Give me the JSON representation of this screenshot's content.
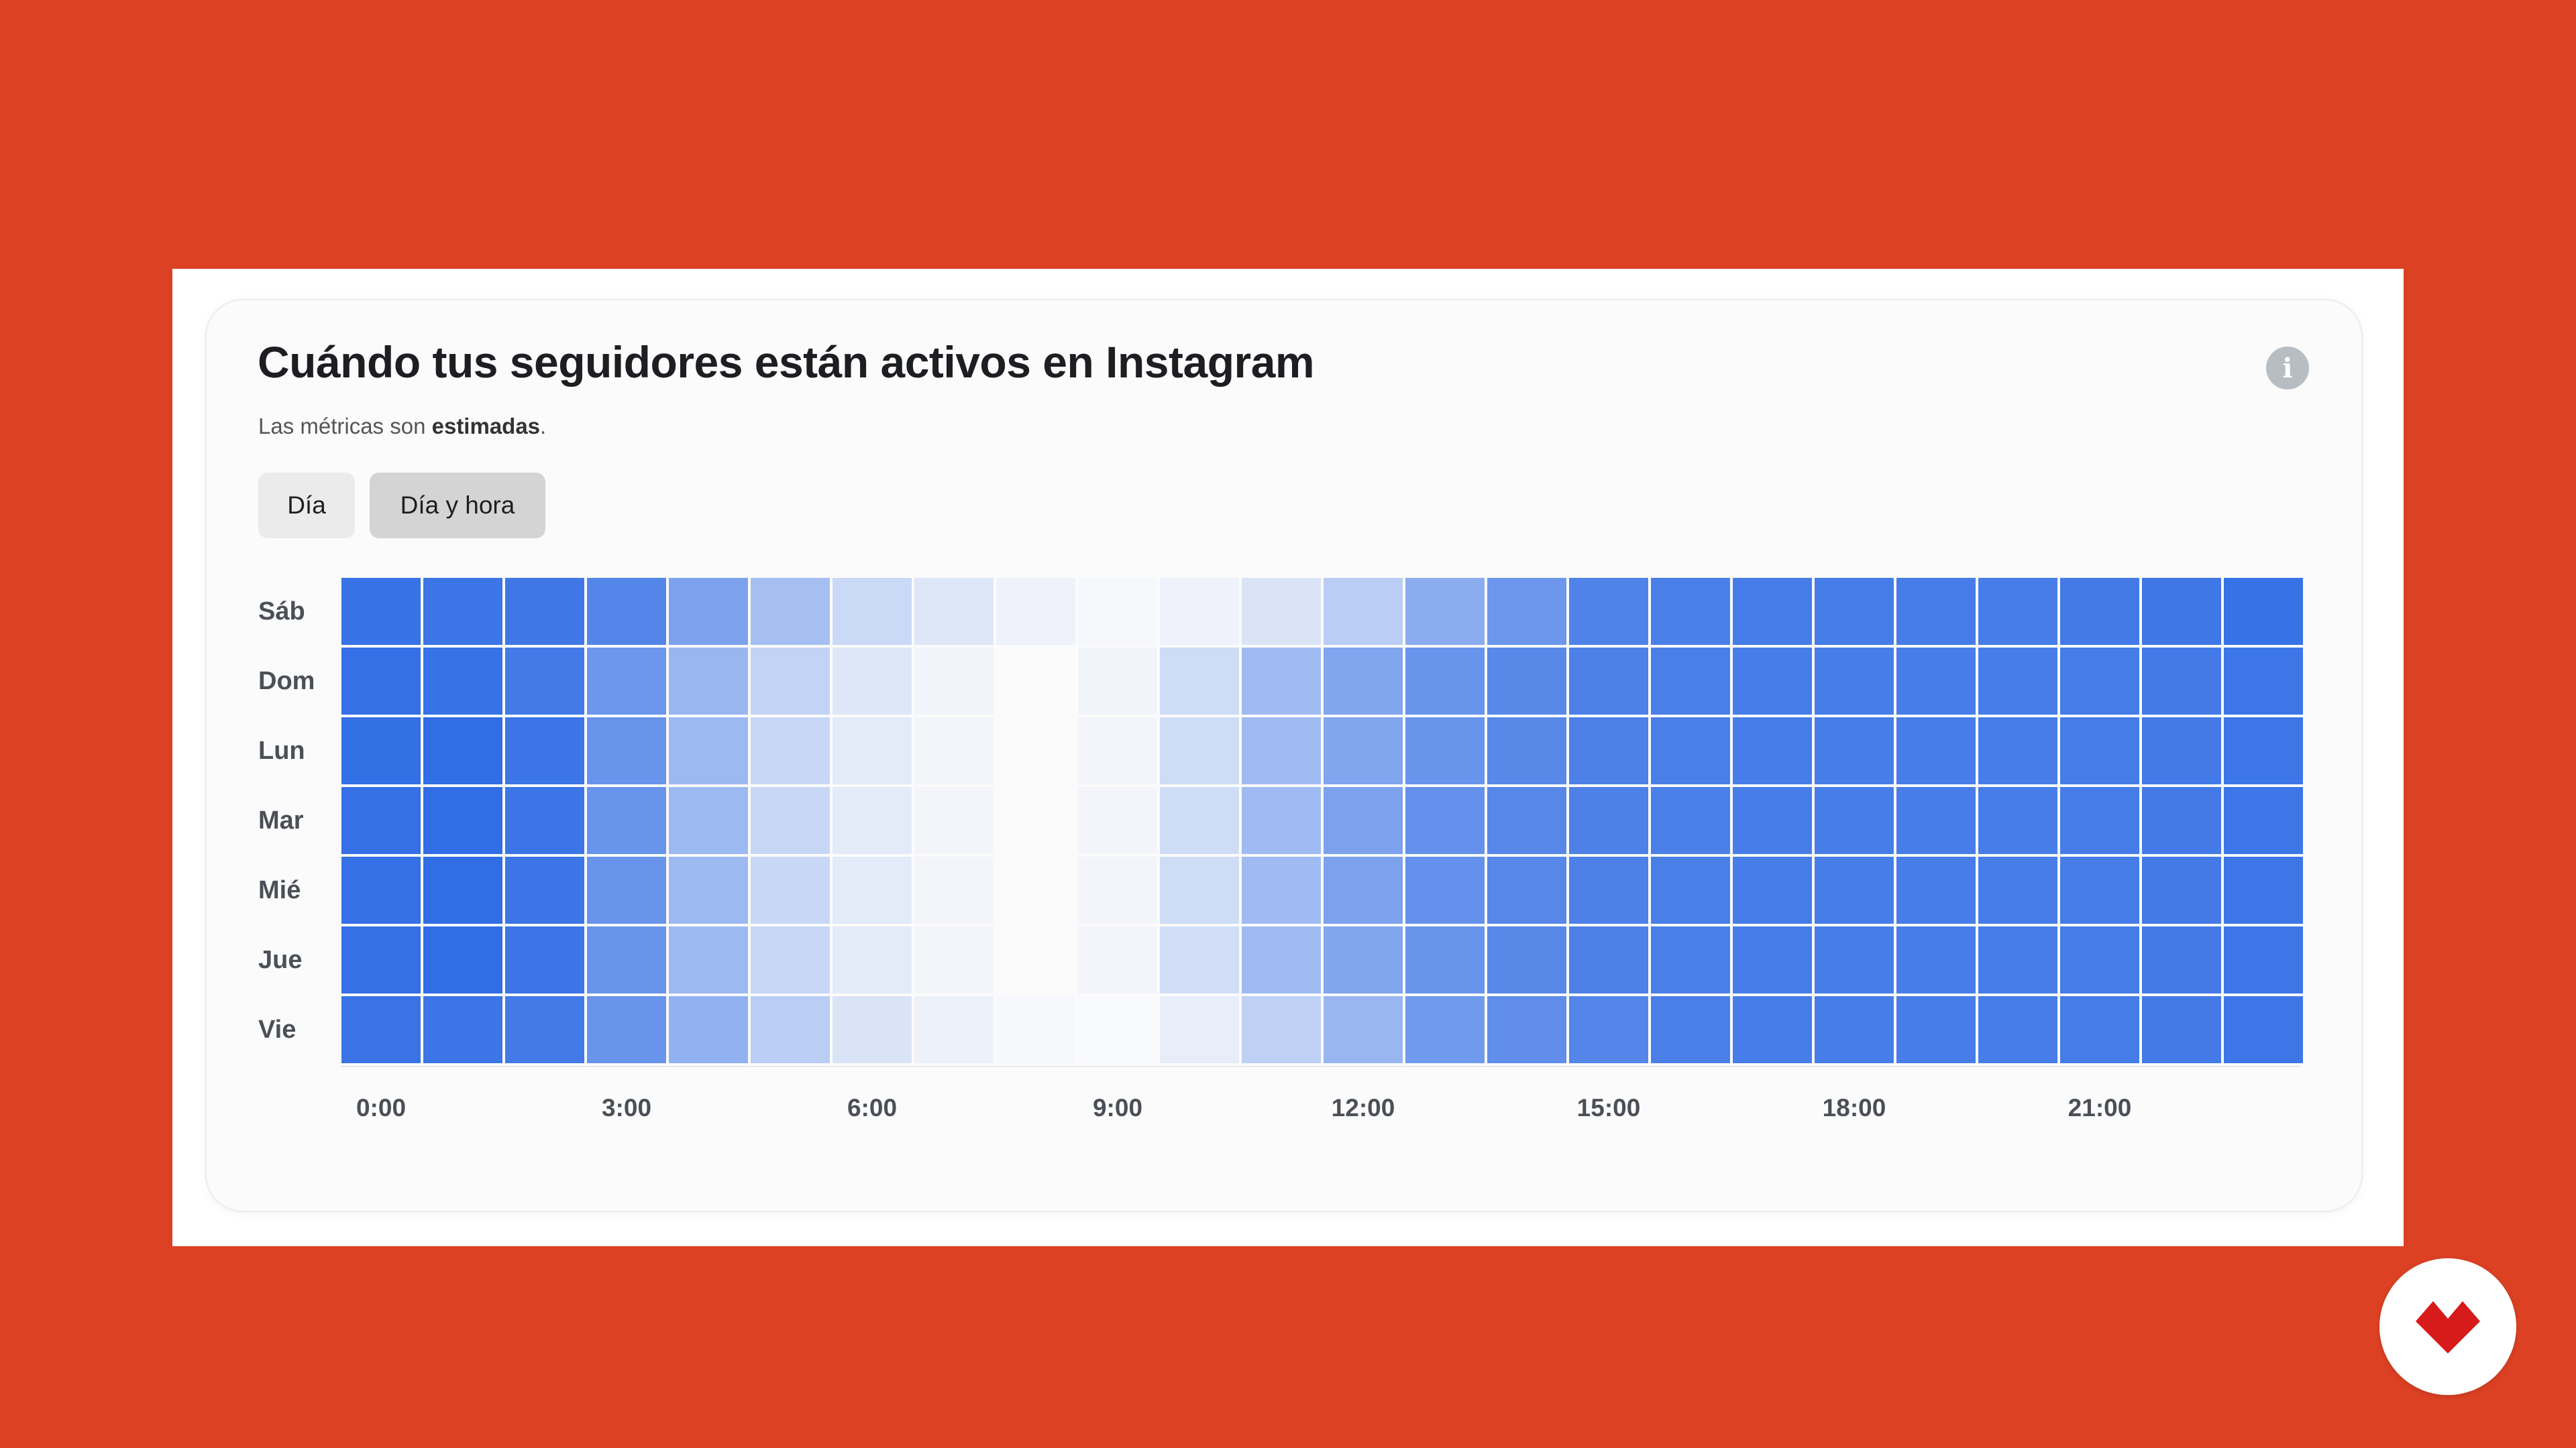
{
  "card": {
    "title": "Cuándo tus seguidores están activos en Instagram",
    "subtitle_prefix": "Las métricas son ",
    "subtitle_bold": "estimadas",
    "subtitle_suffix": "."
  },
  "info_icon": {
    "name": "info-icon",
    "glyph": "i"
  },
  "tabs": [
    {
      "label": "Día",
      "selected": false
    },
    {
      "label": "Día y hora",
      "selected": true
    }
  ],
  "logo": {
    "name": "brand-logo-icon",
    "color": "#d71a1a"
  },
  "chart_data": {
    "type": "heatmap",
    "rows": [
      "Sáb",
      "Dom",
      "Lun",
      "Mar",
      "Mié",
      "Jue",
      "Vie"
    ],
    "columns": [
      "0:00",
      "1:00",
      "2:00",
      "3:00",
      "4:00",
      "5:00",
      "6:00",
      "7:00",
      "8:00",
      "9:00",
      "10:00",
      "11:00",
      "12:00",
      "13:00",
      "14:00",
      "15:00",
      "16:00",
      "17:00",
      "18:00",
      "19:00",
      "20:00",
      "21:00",
      "22:00",
      "23:00"
    ],
    "x_tick_labels": [
      "0:00",
      "3:00",
      "6:00",
      "9:00",
      "12:00",
      "15:00",
      "18:00",
      "21:00"
    ],
    "color_scale": {
      "low": "#fbfbfb",
      "high": "#2f6ce5"
    },
    "values": [
      [
        0.96,
        0.94,
        0.92,
        0.82,
        0.62,
        0.42,
        0.24,
        0.14,
        0.06,
        0.02,
        0.06,
        0.16,
        0.32,
        0.55,
        0.7,
        0.84,
        0.87,
        0.89,
        0.89,
        0.89,
        0.88,
        0.9,
        0.92,
        0.96
      ],
      [
        0.97,
        0.96,
        0.9,
        0.7,
        0.48,
        0.28,
        0.14,
        0.05,
        0.0,
        0.05,
        0.22,
        0.45,
        0.6,
        0.72,
        0.8,
        0.85,
        0.87,
        0.88,
        0.88,
        0.88,
        0.88,
        0.89,
        0.9,
        0.93
      ],
      [
        0.98,
        0.99,
        0.94,
        0.72,
        0.46,
        0.25,
        0.12,
        0.04,
        0.0,
        0.04,
        0.22,
        0.45,
        0.6,
        0.72,
        0.8,
        0.85,
        0.87,
        0.88,
        0.88,
        0.88,
        0.88,
        0.89,
        0.9,
        0.93
      ],
      [
        0.97,
        0.99,
        0.94,
        0.72,
        0.46,
        0.25,
        0.12,
        0.04,
        0.0,
        0.04,
        0.22,
        0.45,
        0.62,
        0.74,
        0.81,
        0.85,
        0.87,
        0.88,
        0.88,
        0.88,
        0.88,
        0.89,
        0.9,
        0.93
      ],
      [
        0.97,
        0.99,
        0.94,
        0.72,
        0.46,
        0.25,
        0.12,
        0.04,
        0.0,
        0.04,
        0.22,
        0.45,
        0.62,
        0.74,
        0.81,
        0.85,
        0.87,
        0.88,
        0.88,
        0.88,
        0.88,
        0.89,
        0.9,
        0.93
      ],
      [
        0.97,
        0.99,
        0.94,
        0.72,
        0.46,
        0.25,
        0.12,
        0.04,
        0.0,
        0.04,
        0.2,
        0.45,
        0.6,
        0.72,
        0.8,
        0.85,
        0.87,
        0.88,
        0.88,
        0.88,
        0.88,
        0.89,
        0.9,
        0.93
      ],
      [
        0.95,
        0.94,
        0.9,
        0.72,
        0.52,
        0.32,
        0.16,
        0.07,
        0.02,
        0.01,
        0.1,
        0.3,
        0.48,
        0.68,
        0.76,
        0.82,
        0.87,
        0.88,
        0.88,
        0.88,
        0.88,
        0.89,
        0.9,
        0.93
      ]
    ]
  }
}
